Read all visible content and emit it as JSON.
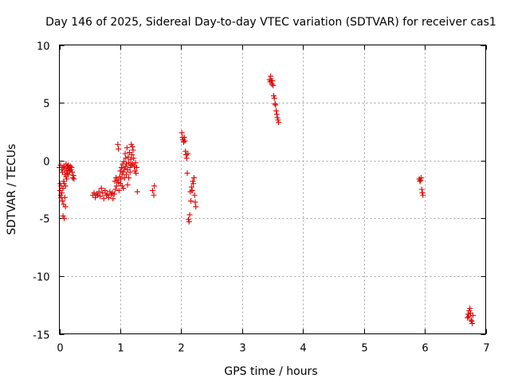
{
  "chart_data": {
    "type": "scatter",
    "title": "Day 146 of 2025, Sidereal Day-to-day VTEC variation (SDTVAR) for receiver cas1",
    "xlabel": "GPS time / hours",
    "ylabel": "SDTVAR / TECUs",
    "xlim": [
      0,
      7
    ],
    "ylim": [
      -15,
      10
    ],
    "xticks": [
      0,
      1,
      2,
      3,
      4,
      5,
      6,
      7
    ],
    "yticks": [
      -15,
      -10,
      -5,
      0,
      5,
      10
    ],
    "xtick_labels": [
      "0",
      "1",
      "2",
      "3",
      "4",
      "5",
      "6",
      "7"
    ],
    "ytick_labels": [
      "-15",
      "-10",
      "-5",
      "0",
      "5",
      "10"
    ],
    "grid": true,
    "marker": "+",
    "color": "#e00000",
    "series": [
      {
        "name": "cas1",
        "points": [
          [
            0.0,
            -0.6
          ],
          [
            0.01,
            -2.0
          ],
          [
            0.01,
            -2.6
          ],
          [
            0.02,
            -3.0
          ],
          [
            0.02,
            -0.4
          ],
          [
            0.03,
            -2.2
          ],
          [
            0.03,
            -3.2
          ],
          [
            0.04,
            -0.8
          ],
          [
            0.04,
            -2.8
          ],
          [
            0.05,
            -3.5
          ],
          [
            0.05,
            -1.0
          ],
          [
            0.06,
            -2.4
          ],
          [
            0.06,
            -4.8
          ],
          [
            0.06,
            -0.6
          ],
          [
            0.07,
            -3.8
          ],
          [
            0.07,
            -1.8
          ],
          [
            0.08,
            -5.0
          ],
          [
            0.08,
            -2.0
          ],
          [
            0.08,
            -0.5
          ],
          [
            0.09,
            -3.2
          ],
          [
            0.09,
            -1.2
          ],
          [
            0.1,
            -4.0
          ],
          [
            0.1,
            -2.2
          ],
          [
            0.1,
            -0.7
          ],
          [
            0.11,
            -1.4
          ],
          [
            0.11,
            -0.3
          ],
          [
            0.12,
            -0.9
          ],
          [
            0.12,
            -1.6
          ],
          [
            0.13,
            -0.5
          ],
          [
            0.13,
            -1.1
          ],
          [
            0.14,
            -0.7
          ],
          [
            0.15,
            -0.4
          ],
          [
            0.15,
            -1.2
          ],
          [
            0.16,
            -0.6
          ],
          [
            0.17,
            -0.9
          ],
          [
            0.18,
            -0.5
          ],
          [
            0.19,
            -0.8
          ],
          [
            0.2,
            -0.6
          ],
          [
            0.21,
            -1.0
          ],
          [
            0.22,
            -1.5
          ],
          [
            0.23,
            -1.3
          ],
          [
            0.24,
            -1.6
          ],
          [
            0.55,
            -3.0
          ],
          [
            0.57,
            -2.8
          ],
          [
            0.59,
            -3.2
          ],
          [
            0.61,
            -2.9
          ],
          [
            0.63,
            -3.0
          ],
          [
            0.65,
            -2.7
          ],
          [
            0.67,
            -3.1
          ],
          [
            0.69,
            -2.4
          ],
          [
            0.71,
            -2.8
          ],
          [
            0.73,
            -3.3
          ],
          [
            0.75,
            -2.6
          ],
          [
            0.77,
            -3.0
          ],
          [
            0.79,
            -2.9
          ],
          [
            0.81,
            -3.2
          ],
          [
            0.83,
            -2.7
          ],
          [
            0.85,
            -3.0
          ],
          [
            0.87,
            -2.8
          ],
          [
            0.88,
            -3.3
          ],
          [
            0.9,
            -2.9
          ],
          [
            0.91,
            -1.8
          ],
          [
            0.92,
            -2.5
          ],
          [
            0.93,
            -1.5
          ],
          [
            0.94,
            -2.2
          ],
          [
            0.95,
            -1.7
          ],
          [
            0.96,
            1.4
          ],
          [
            0.97,
            1.0
          ],
          [
            0.97,
            -1.9
          ],
          [
            0.98,
            -2.6
          ],
          [
            0.99,
            -1.4
          ],
          [
            1.0,
            -0.9
          ],
          [
            1.0,
            -2.0
          ],
          [
            1.01,
            -1.6
          ],
          [
            1.02,
            -0.6
          ],
          [
            1.03,
            -2.2
          ],
          [
            1.03,
            -1.2
          ],
          [
            1.04,
            -0.3
          ],
          [
            1.05,
            -1.0
          ],
          [
            1.05,
            -2.4
          ],
          [
            1.06,
            -0.1
          ],
          [
            1.07,
            -1.5
          ],
          [
            1.07,
            -0.7
          ],
          [
            1.08,
            0.6
          ],
          [
            1.09,
            -0.5
          ],
          [
            1.09,
            0.2
          ],
          [
            1.1,
            -1.2
          ],
          [
            1.1,
            -0.3
          ],
          [
            1.11,
            1.1
          ],
          [
            1.12,
            -0.8
          ],
          [
            1.12,
            -2.1
          ],
          [
            1.13,
            0.3
          ],
          [
            1.14,
            -1.5
          ],
          [
            1.14,
            -0.2
          ],
          [
            1.15,
            0.7
          ],
          [
            1.16,
            -0.6
          ],
          [
            1.16,
            -1.0
          ],
          [
            1.17,
            0.1
          ],
          [
            1.18,
            1.4
          ],
          [
            1.18,
            -0.4
          ],
          [
            1.19,
            0.5
          ],
          [
            1.2,
            1.2
          ],
          [
            1.2,
            -0.3
          ],
          [
            1.21,
            0.9
          ],
          [
            1.22,
            0.2
          ],
          [
            1.23,
            -0.5
          ],
          [
            1.24,
            -0.9
          ],
          [
            1.25,
            -0.2
          ],
          [
            1.26,
            -1.1
          ],
          [
            1.27,
            -0.6
          ],
          [
            1.28,
            -2.7
          ],
          [
            1.53,
            -2.6
          ],
          [
            1.55,
            -3.0
          ],
          [
            1.56,
            -2.2
          ],
          [
            2.01,
            2.4
          ],
          [
            2.02,
            2.0
          ],
          [
            2.03,
            1.8
          ],
          [
            2.04,
            1.6
          ],
          [
            2.05,
            2.0
          ],
          [
            2.06,
            1.7
          ],
          [
            2.07,
            0.8
          ],
          [
            2.08,
            0.5
          ],
          [
            2.09,
            0.2
          ],
          [
            2.1,
            -1.1
          ],
          [
            2.11,
            0.6
          ],
          [
            2.12,
            -5.1
          ],
          [
            2.13,
            -5.3
          ],
          [
            2.14,
            -4.7
          ],
          [
            2.15,
            -2.7
          ],
          [
            2.16,
            -3.5
          ],
          [
            2.17,
            -2.3
          ],
          [
            2.18,
            -2.6
          ],
          [
            2.19,
            -1.8
          ],
          [
            2.2,
            -2.0
          ],
          [
            2.21,
            -1.5
          ],
          [
            2.22,
            -3.0
          ],
          [
            2.23,
            -3.6
          ],
          [
            2.24,
            -4.0
          ],
          [
            3.45,
            7.0
          ],
          [
            3.46,
            6.8
          ],
          [
            3.47,
            7.3
          ],
          [
            3.48,
            6.9
          ],
          [
            3.49,
            6.6
          ],
          [
            3.5,
            6.9
          ],
          [
            3.51,
            6.5
          ],
          [
            3.52,
            5.6
          ],
          [
            3.53,
            5.4
          ],
          [
            3.54,
            4.9
          ],
          [
            3.55,
            4.8
          ],
          [
            3.56,
            4.3
          ],
          [
            3.57,
            4.0
          ],
          [
            3.58,
            3.7
          ],
          [
            3.59,
            3.5
          ],
          [
            3.6,
            3.3
          ],
          [
            5.91,
            -1.6
          ],
          [
            5.92,
            -1.8
          ],
          [
            5.93,
            -1.7
          ],
          [
            5.94,
            -1.5
          ],
          [
            5.95,
            -2.5
          ],
          [
            5.96,
            -2.8
          ],
          [
            5.97,
            -3.0
          ],
          [
            6.7,
            -13.6
          ],
          [
            6.71,
            -13.3
          ],
          [
            6.72,
            -13.5
          ],
          [
            6.73,
            -13.0
          ],
          [
            6.74,
            -12.8
          ],
          [
            6.75,
            -13.2
          ],
          [
            6.76,
            -13.8
          ],
          [
            6.77,
            -13.9
          ],
          [
            6.78,
            -14.1
          ],
          [
            6.79,
            -13.4
          ]
        ]
      }
    ]
  }
}
